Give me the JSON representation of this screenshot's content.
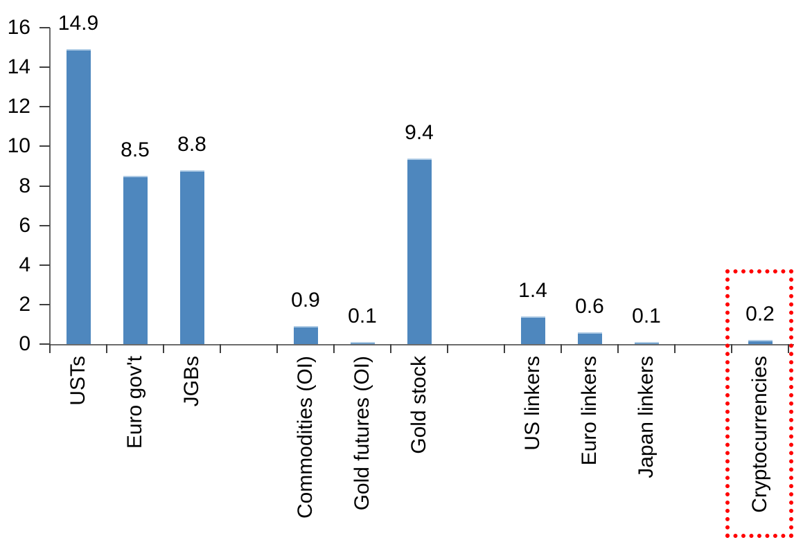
{
  "chart_data": {
    "type": "bar",
    "title": "",
    "xlabel": "",
    "ylabel": "",
    "categories": [
      "USTs",
      "Euro gov't",
      "JGBs",
      "",
      "Commodities (OI)",
      "Gold futures (OI)",
      "Gold stock",
      "",
      "US linkers",
      "Euro linkers",
      "Japan linkers",
      "",
      "Cryptocurrencies"
    ],
    "values": [
      14.9,
      8.5,
      8.8,
      null,
      0.9,
      0.1,
      9.4,
      null,
      1.4,
      0.6,
      0.1,
      null,
      0.2
    ],
    "value_labels": [
      "14.9",
      "8.5",
      "8.8",
      "",
      "0.9",
      "0.1",
      "9.4",
      "",
      "1.4",
      "0.6",
      "0.1",
      "",
      "0.2"
    ],
    "ylim": [
      0,
      16
    ],
    "yticks": [
      0,
      2,
      4,
      6,
      8,
      10,
      12,
      14,
      16
    ],
    "grid": false,
    "legend": false,
    "category_label_rotation_deg": -90,
    "bar_color": "#4e87be",
    "bar_top_edge_color": "#aecbe5",
    "axis_color": "#6b6b6b",
    "tick_color": "#3f3f3f",
    "text_color": "#000000",
    "highlight_box": {
      "category": "Cryptocurrencies",
      "slot": 12,
      "border_color": "#ff0000",
      "border_style": "dotted"
    }
  }
}
